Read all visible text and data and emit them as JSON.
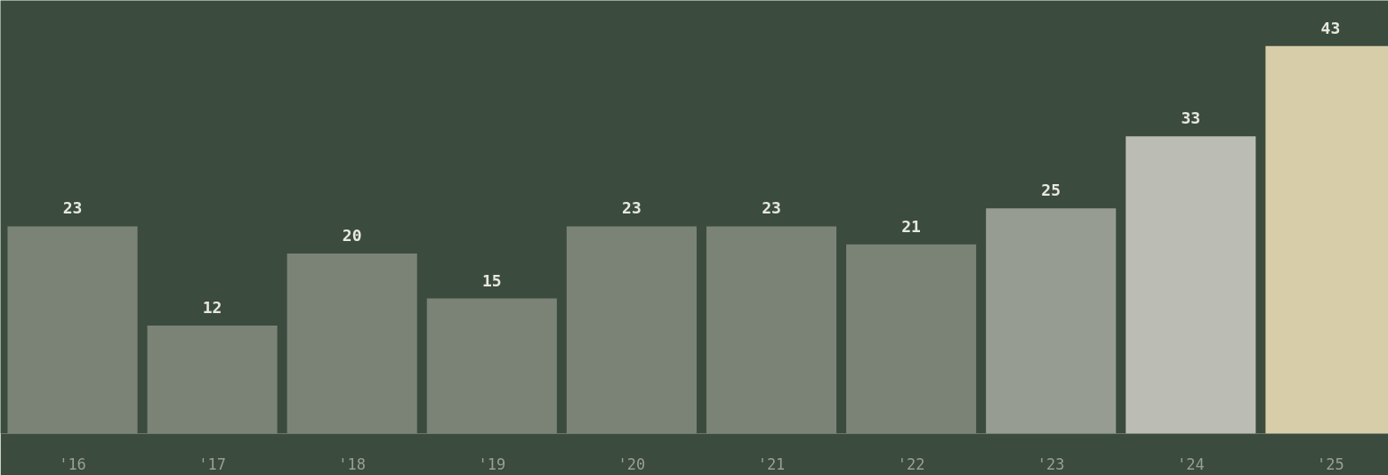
{
  "chart_data": {
    "type": "bar",
    "categories": [
      "'16",
      "'17",
      "'18",
      "'19",
      "'20",
      "'21",
      "'22",
      "'23",
      "'24",
      "'25"
    ],
    "values": [
      23,
      12,
      20,
      15,
      23,
      23,
      21,
      25,
      33,
      43
    ],
    "colors": [
      "#7b8377",
      "#7b8377",
      "#7b8377",
      "#7b8377",
      "#7b8377",
      "#7b8377",
      "#7b8377",
      "#979c92",
      "#bbbcb3",
      "#d8cda9"
    ],
    "data_labels": true
  }
}
